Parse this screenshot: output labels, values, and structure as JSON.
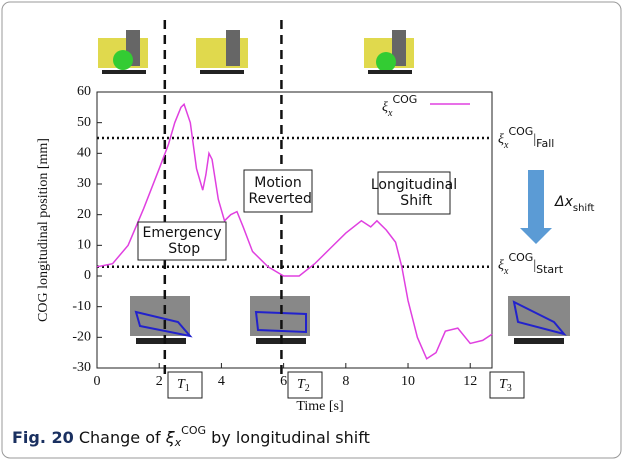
{
  "chart_data": {
    "type": "line",
    "xlabel": "Time [s]",
    "ylabel": "COG longitudinal position [mm]",
    "x": [
      0,
      0.5,
      1,
      1.5,
      2,
      2.3,
      2.5,
      2.7,
      2.8,
      3,
      3.2,
      3.4,
      3.5,
      3.6,
      3.7,
      3.9,
      4.1,
      4.3,
      4.5,
      4.7,
      5,
      5.5,
      6,
      6.5,
      7,
      7.5,
      8,
      8.5,
      8.8,
      9,
      9.3,
      9.6,
      9.8,
      10,
      10.3,
      10.6,
      10.9,
      11.2,
      11.6,
      12,
      12.4,
      12.7
    ],
    "series": [
      {
        "name": {
          "base": "ξ",
          "sub": "x",
          "sup": "COG"
        },
        "color": "#e040e0",
        "values": [
          3,
          4,
          10,
          22,
          35,
          43,
          50,
          55,
          56,
          50,
          35,
          28,
          33,
          40,
          38,
          25,
          18,
          20,
          21,
          16,
          8,
          3,
          0,
          0,
          4,
          9,
          14,
          18,
          16,
          18,
          15,
          11,
          3,
          -8,
          -20,
          -27,
          -25,
          -18,
          -17,
          -22,
          -21,
          -19
        ]
      }
    ],
    "xlim": [
      0,
      12.7
    ],
    "ylim": [
      -30,
      60
    ],
    "xticks": [
      0,
      2,
      4,
      6,
      8,
      10,
      12
    ],
    "yticks": [
      -30,
      -20,
      -10,
      0,
      10,
      20,
      30,
      40,
      50,
      60
    ],
    "hlines": [
      45,
      3
    ],
    "vlines": [
      2.18,
      5.93
    ],
    "annotations": [
      "Emergency Stop",
      "Motion Reverted",
      "Longitudinal Shift"
    ],
    "phases": [
      [
        "T",
        "1"
      ],
      [
        "T",
        "2"
      ],
      [
        "T",
        "3"
      ]
    ],
    "label_fall": [
      "ξ",
      "x",
      "COG",
      "|",
      "Fall"
    ],
    "label_shift": [
      "Δx",
      "shift"
    ],
    "label_start": [
      "ξ",
      "x",
      "COG",
      "|",
      "Start"
    ],
    "caption": [
      "Fig. 20",
      " Change of ",
      "ξ",
      "x",
      "COG",
      " by longitudinal shift"
    ]
  }
}
